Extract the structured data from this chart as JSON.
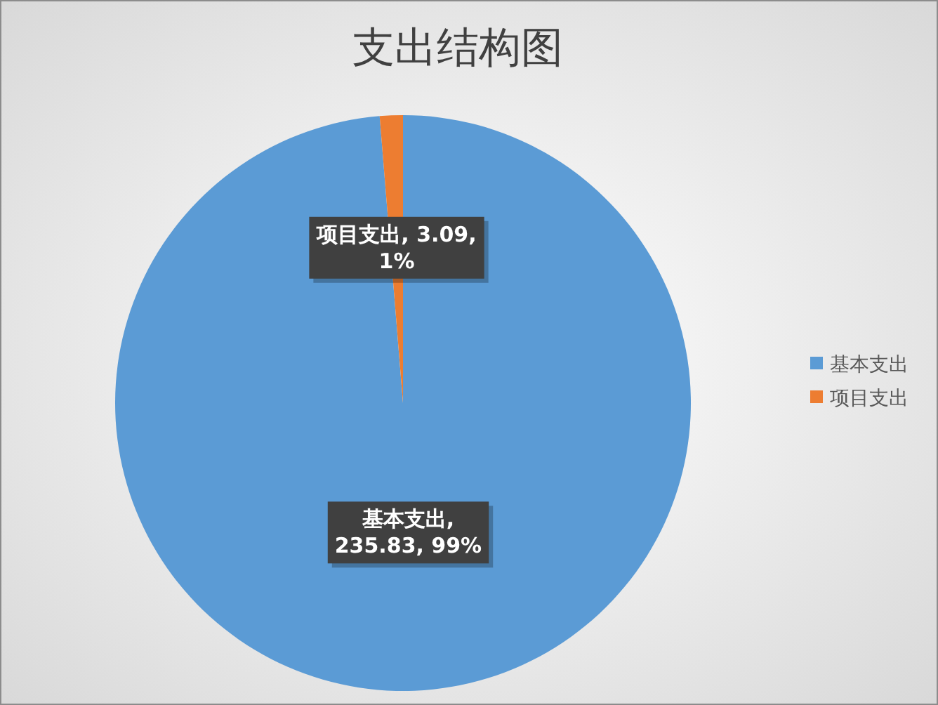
{
  "chart_data": {
    "type": "pie",
    "title": "支出结构图",
    "categories": [
      "基本支出",
      "项目支出"
    ],
    "values": [
      235.83,
      3.09
    ],
    "colors": [
      "#5b9bd5",
      "#ed7d31"
    ],
    "value_labels": [
      "基本支出,\n235.83, 99%",
      "项目支出, 3.09,\n1%"
    ],
    "legend": "right"
  }
}
